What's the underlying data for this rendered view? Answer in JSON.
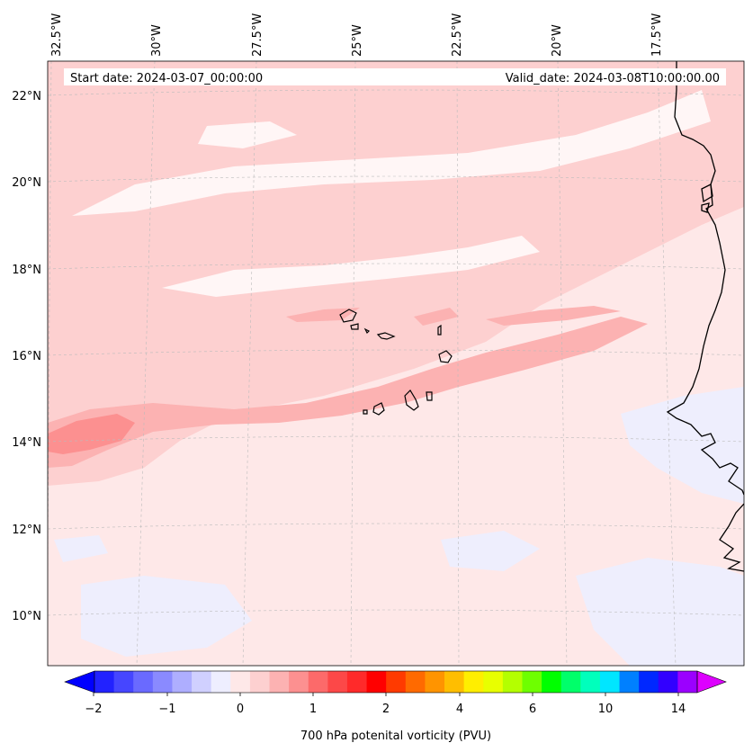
{
  "header": {
    "start_date": "Start date: 2024-03-07_00:00:00",
    "valid_date": "Valid_date: 2024-03-08T10:00:00.00"
  },
  "map": {
    "lon_labels": [
      "32.5°W",
      "30°W",
      "27.5°W",
      "25°W",
      "22.5°W",
      "20°W",
      "17.5°W"
    ],
    "lat_labels": [
      "22°N",
      "20°N",
      "18°N",
      "16°N",
      "14°N",
      "12°N",
      "10°N"
    ],
    "colors": {
      "background": "#fee8e8",
      "light_pink": "#fdd0d0",
      "mid_pink": "#fcb2b2",
      "dark_pink": "#fc9090",
      "white_streak": "#fff6f6",
      "lavender": "#eeeefd",
      "coast": "#000000",
      "grid": "#bbbbbb"
    }
  },
  "colorbar": {
    "label": "700 hPa potenital vorticity (PVU)",
    "ticks": [
      "−2",
      "−1",
      "0",
      "1",
      "2",
      "4",
      "6",
      "10",
      "14"
    ],
    "colors": [
      "#0000ff",
      "#2222ff",
      "#4646ff",
      "#6a6aff",
      "#8a8aff",
      "#aeaeff",
      "#d0d0ff",
      "#eeeeff",
      "#fee8e8",
      "#fdd0d0",
      "#fcb2b2",
      "#fc9090",
      "#fc6a6a",
      "#fc4848",
      "#ff2a2a",
      "#ff0000",
      "#ff3a00",
      "#ff6a00",
      "#ff9400",
      "#ffbe00",
      "#ffee00",
      "#e8ff00",
      "#b4ff00",
      "#6eff00",
      "#00ff00",
      "#00ff6a",
      "#00ffbc",
      "#00e6ff",
      "#0080ff",
      "#0028ff",
      "#3200ff",
      "#9b00ff",
      "#dd00ff"
    ]
  }
}
